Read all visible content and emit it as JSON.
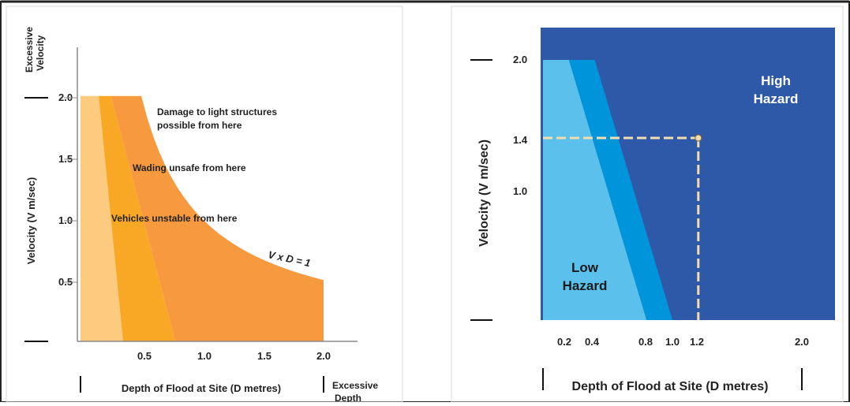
{
  "colors": {
    "band1": "#FDCB80",
    "band2": "#F9A825",
    "band3": "#F6993F",
    "low_light": "#5BC0EB",
    "low_mid": "#0095DA",
    "high": "#2E59A8",
    "guide": "#F0DDB0"
  },
  "left_panel": {
    "corner_top": "Excessive",
    "corner_bottom": "Velocity",
    "xlabel": "Depth of Flood at Site (D metres)",
    "ylabel": "Velocity (V m/sec)",
    "excessive_depth_top": "Excessive",
    "excessive_depth_bottom": "Depth",
    "annotations": {
      "damage_line1": "Damage to light structures",
      "damage_line2": "possible from here",
      "wading": "Wading unsafe from here",
      "vehicles": "Vehicles unstable from here",
      "curve": "V x D = 1"
    }
  },
  "right_panel": {
    "xlabel": "Depth of Flood at Site (D metres)",
    "ylabel": "Velocity (V m/sec)",
    "high_line1": "High",
    "high_line2": "Hazard",
    "low_line1": "Low",
    "low_line2": "Hazard"
  },
  "chart_data": [
    {
      "type": "area",
      "title": "",
      "xlabel": "Depth of Flood at Site (D metres)",
      "ylabel": "Velocity (V m/sec)",
      "x_ticks": [
        "0.5",
        "1.0",
        "1.5",
        "2.0"
      ],
      "y_ticks": [
        "0.5",
        "1.0",
        "1.5",
        "2.0"
      ],
      "xlim": [
        0,
        2.3
      ],
      "ylim": [
        0,
        2.4
      ],
      "regions": [
        {
          "name": "Vehicles unstable from here",
          "boundary": [
            [
              0.15,
              2.0
            ],
            [
              0.35,
              0
            ]
          ]
        },
        {
          "name": "Wading unsafe from here",
          "boundary": [
            [
              0.25,
              2.0
            ],
            [
              0.78,
              0
            ]
          ]
        },
        {
          "name": "Damage to light structures possible from here",
          "curve": "V x D = 1",
          "boundary": [
            [
              0.5,
              2.0
            ],
            [
              2.0,
              0.53
            ]
          ]
        }
      ]
    },
    {
      "type": "area",
      "title": "",
      "xlabel": "Depth of Flood at Site (D metres)",
      "ylabel": "Velocity (V m/sec)",
      "x_ticks": [
        "0.2",
        "0.4",
        "0.8",
        "1.0",
        "1.2",
        "2.0"
      ],
      "y_ticks": [
        "1.0",
        "1.4",
        "2.0"
      ],
      "xlim": [
        0,
        2.4
      ],
      "ylim": [
        0,
        2.25
      ],
      "regions": [
        {
          "name": "Low Hazard",
          "boundary": [
            [
              0.2,
              2.0
            ],
            [
              0.8,
              0
            ]
          ]
        },
        {
          "name": "Low Hazard (transition)",
          "boundary": [
            [
              0.4,
              2.0
            ],
            [
              1.0,
              0
            ]
          ]
        },
        {
          "name": "High Hazard",
          "boundary": "remainder"
        }
      ],
      "marker": {
        "x": 1.2,
        "y": 1.4
      }
    }
  ]
}
